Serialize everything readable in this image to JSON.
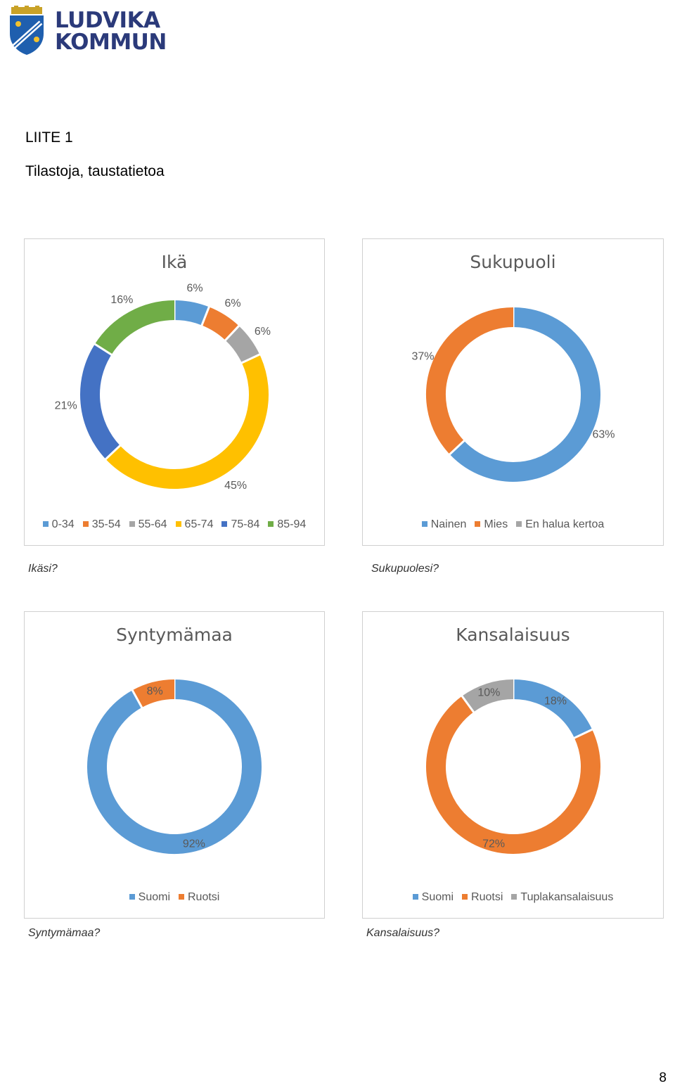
{
  "header": {
    "logo_text_line1": "LUDVIKA",
    "logo_text_line2": "KOMMUN"
  },
  "document": {
    "heading": "LIITE 1",
    "subheading": "Tilastoja, taustatietoa",
    "page_number": "8"
  },
  "captions": [
    "Ikäsi?",
    "Sukupuolesi?",
    "Syntymämaa?",
    "Kansalaisuus?"
  ],
  "colors": {
    "blue": "#5b9bd5",
    "orange": "#ed7d31",
    "gray": "#a5a5a5",
    "yellow": "#ffc000",
    "darkblue": "#4472c4",
    "green": "#70ad47"
  },
  "chart_data": [
    {
      "type": "pie",
      "title": "Ikä",
      "categories": [
        "0-34",
        "35-54",
        "55-64",
        "65-74",
        "75-84",
        "85-94"
      ],
      "values": [
        6,
        6,
        6,
        45,
        21,
        16
      ],
      "labels": [
        "6%",
        "6%",
        "6%",
        "45%",
        "21%",
        "16%"
      ],
      "colors": [
        "#5b9bd5",
        "#ed7d31",
        "#a5a5a5",
        "#ffc000",
        "#4472c4",
        "#70ad47"
      ],
      "legend_position": "bottom"
    },
    {
      "type": "pie",
      "title": "Sukupuoli",
      "categories": [
        "Nainen",
        "Mies",
        "En halua kertoa"
      ],
      "values": [
        63,
        37,
        0
      ],
      "labels": [
        "63%",
        "37%",
        ""
      ],
      "colors": [
        "#5b9bd5",
        "#ed7d31",
        "#a5a5a5"
      ],
      "legend_position": "bottom"
    },
    {
      "type": "pie",
      "title": "Syntymämaa",
      "categories": [
        "Suomi",
        "Ruotsi"
      ],
      "values": [
        92,
        8
      ],
      "labels": [
        "92%",
        "8%"
      ],
      "colors": [
        "#5b9bd5",
        "#ed7d31"
      ],
      "legend_position": "bottom"
    },
    {
      "type": "pie",
      "title": "Kansalaisuus",
      "categories": [
        "Suomi",
        "Ruotsi",
        "Tuplakansalaisuus"
      ],
      "values": [
        18,
        72,
        10
      ],
      "labels": [
        "18%",
        "72%",
        "10%"
      ],
      "colors": [
        "#5b9bd5",
        "#ed7d31",
        "#a5a5a5"
      ],
      "legend_position": "bottom"
    }
  ]
}
